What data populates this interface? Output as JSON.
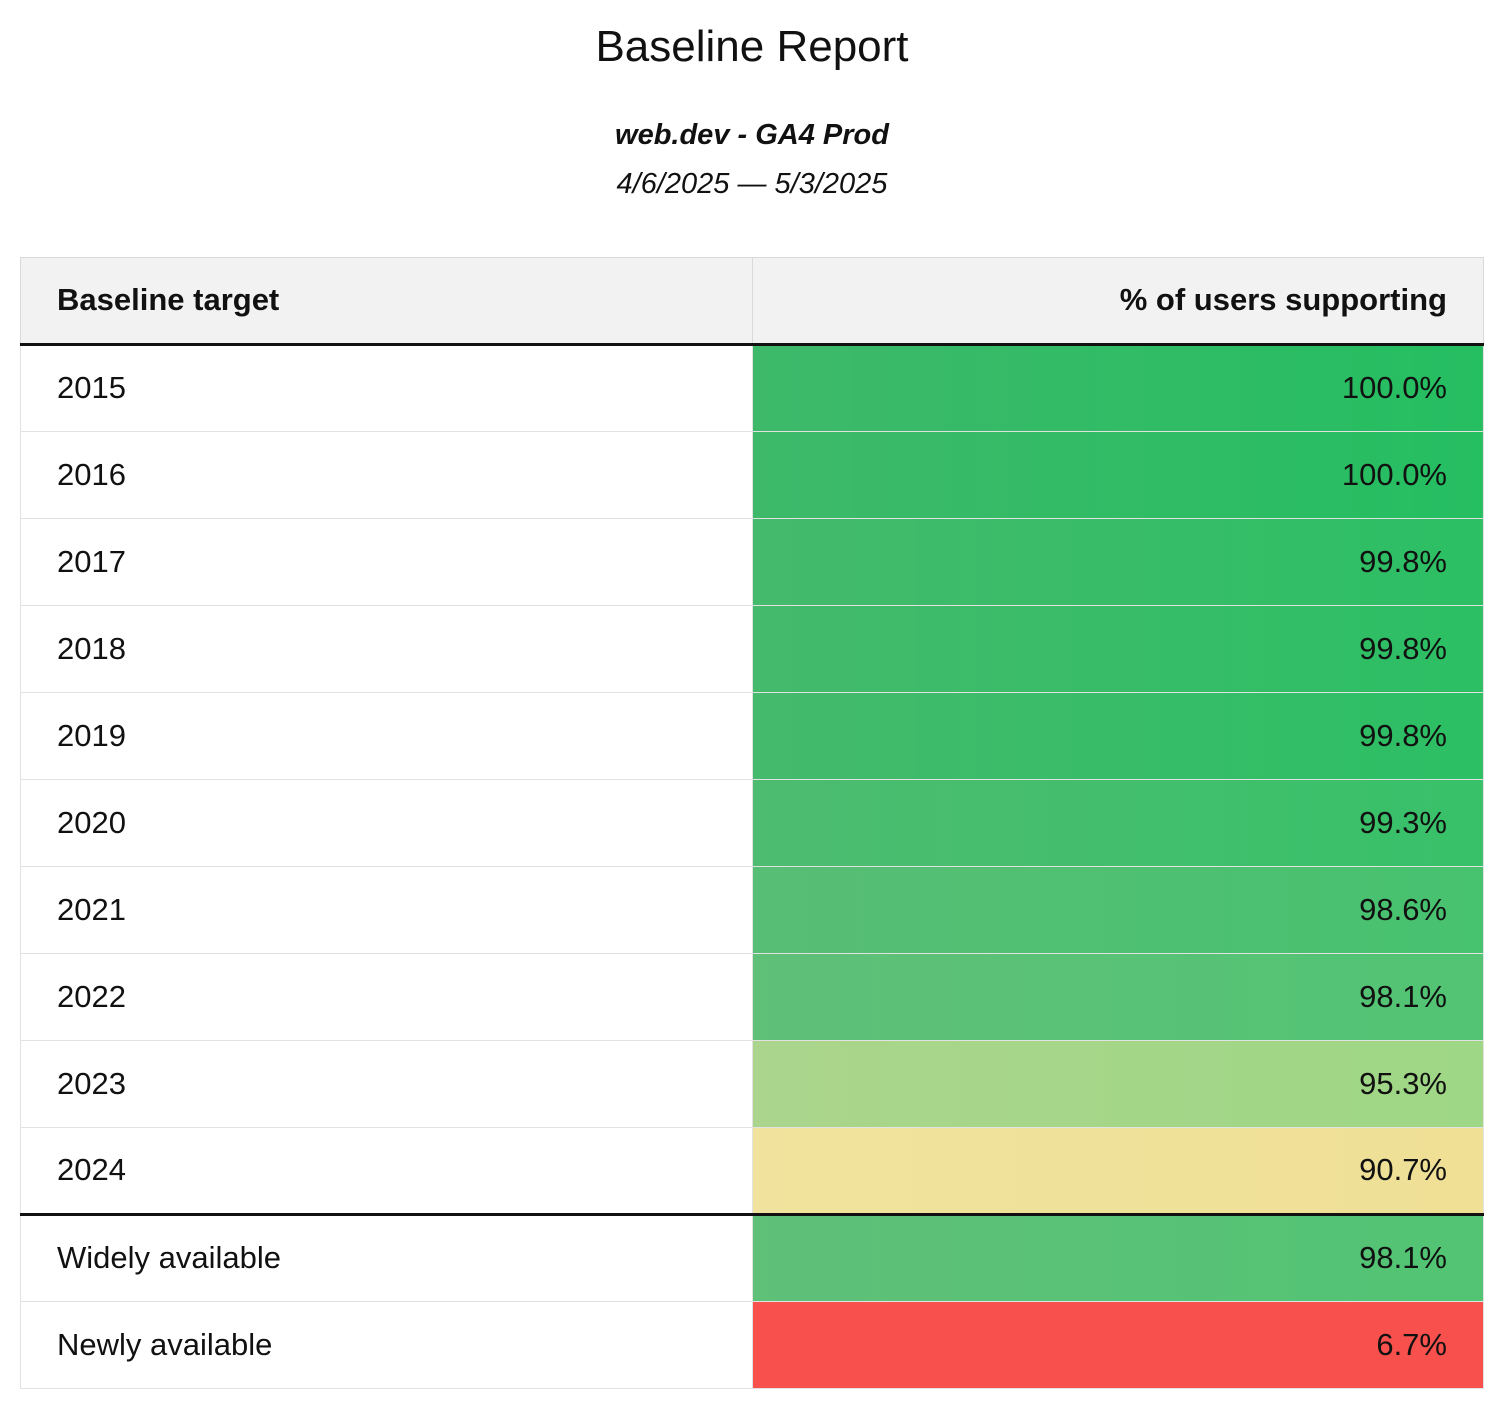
{
  "report": {
    "title": "Baseline Report",
    "property": "web.dev - GA4 Prod",
    "date_range": "4/6/2025 — 5/3/2025"
  },
  "table": {
    "columns": [
      "Baseline target",
      "% of users supporting"
    ],
    "rows": [
      {
        "target": "2015",
        "value": "100.0%",
        "bg": [
          "#3EB96A",
          "#25BE61"
        ]
      },
      {
        "target": "2016",
        "value": "100.0%",
        "bg": [
          "#3EB96A",
          "#25BE61"
        ]
      },
      {
        "target": "2017",
        "value": "99.8%",
        "bg": [
          "#44BA6C",
          "#2CBF64"
        ]
      },
      {
        "target": "2018",
        "value": "99.8%",
        "bg": [
          "#44BA6C",
          "#2CBF64"
        ]
      },
      {
        "target": "2019",
        "value": "99.8%",
        "bg": [
          "#44BA6C",
          "#2CBF64"
        ]
      },
      {
        "target": "2020",
        "value": "99.3%",
        "bg": [
          "#4DBC70",
          "#38C169"
        ]
      },
      {
        "target": "2021",
        "value": "98.6%",
        "bg": [
          "#57BE75",
          "#47C26F"
        ]
      },
      {
        "target": "2022",
        "value": "98.1%",
        "bg": [
          "#5FC078",
          "#52C474"
        ]
      },
      {
        "target": "2023",
        "value": "95.3%",
        "bg": [
          "#ABD58C",
          "#9ED785"
        ]
      },
      {
        "target": "2024",
        "value": "90.7%",
        "bg": [
          "#F1E29D",
          "#EFE096"
        ]
      },
      {
        "target": "Widely available",
        "value": "98.1%",
        "bg": [
          "#5FC078",
          "#52C474"
        ]
      },
      {
        "target": "Newly available",
        "value": "6.7%",
        "bg": [
          "#F8504C",
          "#F8504C"
        ]
      }
    ]
  },
  "chart_data": {
    "type": "table",
    "title": "Baseline Report",
    "subtitle": "web.dev - GA4 Prod",
    "date_range": "4/6/2025 — 5/3/2025",
    "columns": [
      "Baseline target",
      "% of users supporting"
    ],
    "rows": [
      [
        "2015",
        100.0
      ],
      [
        "2016",
        100.0
      ],
      [
        "2017",
        99.8
      ],
      [
        "2018",
        99.8
      ],
      [
        "2019",
        99.8
      ],
      [
        "2020",
        99.3
      ],
      [
        "2021",
        98.6
      ],
      [
        "2022",
        98.1
      ],
      [
        "2023",
        95.3
      ],
      [
        "2024",
        90.7
      ],
      [
        "Widely available",
        98.1
      ],
      [
        "Newly available",
        6.7
      ]
    ],
    "color_scale": {
      "high": "#2CBF64",
      "mid": "#EFE096",
      "low": "#F8504C"
    },
    "groups": [
      {
        "name": "yearly-targets",
        "row_indexes": [
          0,
          1,
          2,
          3,
          4,
          5,
          6,
          7,
          8,
          9
        ]
      },
      {
        "name": "availability-targets",
        "row_indexes": [
          10,
          11
        ]
      }
    ]
  }
}
